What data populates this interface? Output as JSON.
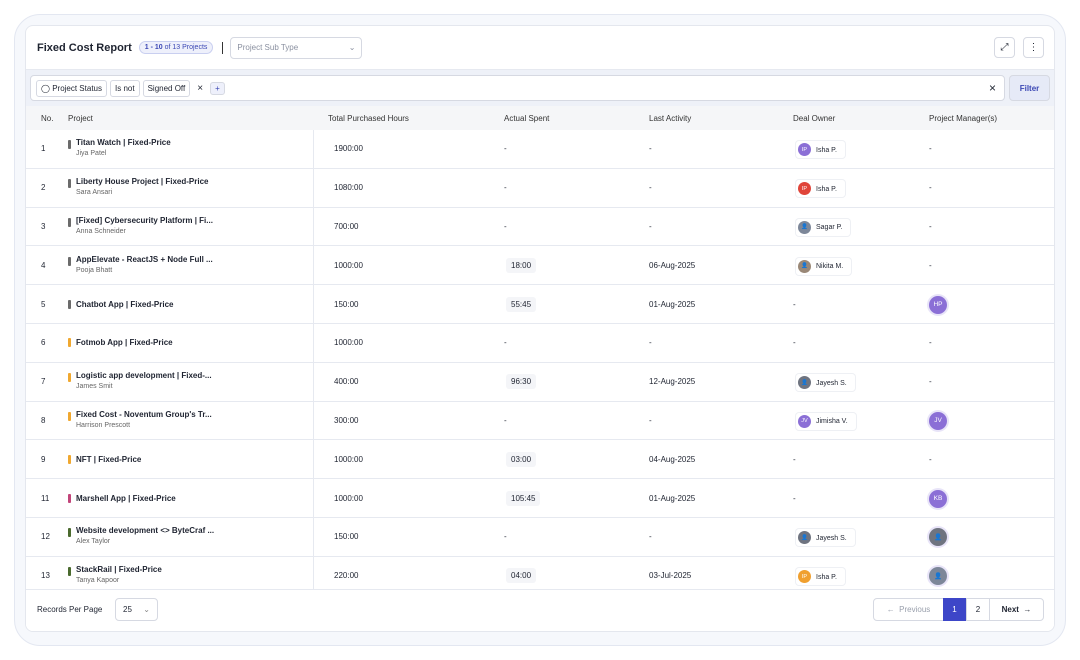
{
  "header": {
    "title": "Fixed Cost Report",
    "range": "1 - 10",
    "total": "of 13 Projects",
    "sub_type": "Project Sub Type"
  },
  "filter": {
    "field": "Project Status",
    "operator": "Is not",
    "value": "Signed Off",
    "button": "Filter"
  },
  "columns": [
    "No.",
    "Project",
    "Total Purchased Hours",
    "Actual Spent",
    "Last Activity",
    "Deal Owner",
    "Project Manager(s)"
  ],
  "rows": [
    {
      "no": 1,
      "project": "Titan Watch | Fixed-Price",
      "client": "Jiya Patel",
      "color": "#6b6b6b",
      "hours": "1900:00",
      "spent": "-",
      "last": "-",
      "owner": {
        "initials": "IP",
        "name": "Isha P.",
        "color": "#8b6fd6"
      },
      "manager": "-"
    },
    {
      "no": 2,
      "project": "Liberty House Project | Fixed-Price",
      "client": "Sara Ansari",
      "color": "#6b6b6b",
      "hours": "1080:00",
      "spent": "-",
      "last": "-",
      "owner": {
        "initials": "IP",
        "name": "Isha P.",
        "color": "#e0453a"
      },
      "manager": "-"
    },
    {
      "no": 3,
      "project": "[Fixed] Cybersecurity Platform | Fi...",
      "client": "Anna Schneider",
      "color": "#6b6b6b",
      "hours": "700:00",
      "spent": "-",
      "last": "-",
      "owner": {
        "name": "Sagar P.",
        "color": "#7d8799"
      },
      "manager": "-"
    },
    {
      "no": 4,
      "project": "AppElevate - ReactJS + Node Full ...",
      "client": "Pooja Bhatt",
      "color": "#6b6b6b",
      "hours": "1000:00",
      "spent": "18:00",
      "last": "06-Aug-2025",
      "owner": {
        "name": "Nikita M.",
        "color": "#9a8877"
      },
      "manager": "-"
    },
    {
      "no": 5,
      "project": "Chatbot App | Fixed-Price",
      "color": "#6b6b6b",
      "hours": "150:00",
      "spent": "55:45",
      "last": "01-Aug-2025",
      "owner": "-",
      "manager": {
        "initials": "HP",
        "color": "#8b6fd6"
      }
    },
    {
      "no": 6,
      "project": "Fotmob App | Fixed-Price",
      "color": "#f0a830",
      "hours": "1000:00",
      "spent": "-",
      "last": "-",
      "owner": "-",
      "manager": "-"
    },
    {
      "no": 7,
      "project": "Logistic app development | Fixed-...",
      "client": "James Smit",
      "color": "#f0a830",
      "hours": "400:00",
      "spent": "96:30",
      "last": "12-Aug-2025",
      "owner": {
        "name": "Jayesh S.",
        "color": "#6f7480"
      },
      "manager": "-"
    },
    {
      "no": 8,
      "project": "Fixed Cost - Noventum Group's Tr...",
      "client": "Harrison Prescott",
      "color": "#f0a830",
      "hours": "300:00",
      "spent": "-",
      "last": "-",
      "owner": {
        "initials": "JV",
        "name": "Jimisha V.",
        "color": "#8b6fd6"
      },
      "manager": {
        "initials": "JV",
        "color": "#8b6fd6"
      }
    },
    {
      "no": 9,
      "project": "NFT | Fixed-Price",
      "color": "#f0a830",
      "hours": "1000:00",
      "spent": "03:00",
      "last": "04-Aug-2025",
      "owner": "-",
      "manager": "-"
    },
    {
      "no": 11,
      "project": "Marshell App | Fixed-Price",
      "color": "#c2457a",
      "hours": "1000:00",
      "spent": "105:45",
      "last": "01-Aug-2025",
      "owner": "-",
      "manager": {
        "initials": "KB",
        "color": "#8b6fd6"
      }
    },
    {
      "no": 12,
      "project": "Website development <> ByteCraf ...",
      "client": "Alex Taylor",
      "color": "#4a6a2e",
      "hours": "150:00",
      "spent": "-",
      "last": "-",
      "owner": {
        "name": "Jayesh S.",
        "color": "#6f7480"
      },
      "manager": {
        "color": "#6f7480"
      }
    },
    {
      "no": 13,
      "project": "StackRail | Fixed-Price",
      "client": "Tanya Kapoor",
      "color": "#4a6a2e",
      "hours": "220:00",
      "spent": "04:00",
      "last": "03-Jul-2025",
      "owner": {
        "initials": "IP",
        "name": "Isha P.",
        "color": "#f0a030"
      },
      "manager": {
        "color": "#7d8799"
      }
    }
  ],
  "footer": {
    "label": "Records Per Page",
    "per_page": "25",
    "previous": "Previous",
    "pages": [
      "1",
      "2"
    ],
    "next": "Next"
  }
}
